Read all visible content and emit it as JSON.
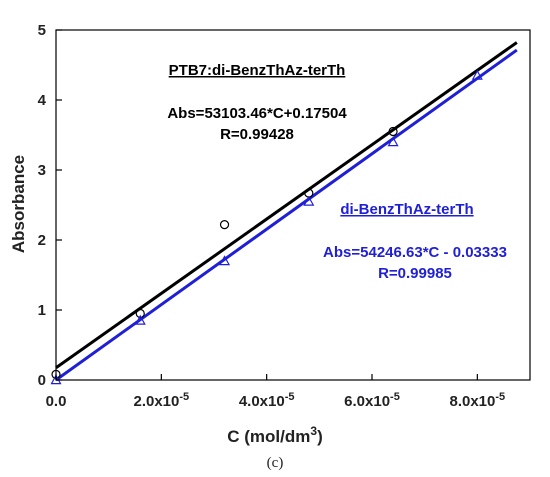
{
  "chart_data": {
    "type": "scatter",
    "xlabel_main": "C (mol/dm",
    "xlabel_sup": "3",
    "xlabel_tail": ")",
    "ylabel": "Absorbance",
    "xlim": [
      0,
      9e-05
    ],
    "ylim": [
      0,
      5
    ],
    "x_ticks": [
      {
        "value": 0,
        "base": "0.0",
        "exp": ""
      },
      {
        "value": 2e-05,
        "base": "2.0x10",
        "exp": "-5"
      },
      {
        "value": 4e-05,
        "base": "4.0x10",
        "exp": "-5"
      },
      {
        "value": 6e-05,
        "base": "6.0x10",
        "exp": "-5"
      },
      {
        "value": 8e-05,
        "base": "8.0x10",
        "exp": "-5"
      }
    ],
    "y_ticks": [
      0,
      1,
      2,
      3,
      4,
      5
    ],
    "grid": false,
    "series": [
      {
        "name": "PTB7:di-BenzThAz-terTh",
        "marker": "circle",
        "color": "#000000",
        "x": [
          0,
          1.6e-05,
          3.2e-05,
          4.8e-05,
          6.4e-05
        ],
        "y": [
          0.08,
          0.95,
          2.22,
          2.67,
          3.55
        ],
        "fit": {
          "slope": 53103.46,
          "intercept": 0.17504,
          "x_range": [
            0,
            8.75e-05
          ]
        },
        "equation": "Abs=53103.46*C+0.17504",
        "r": "R=0.99428"
      },
      {
        "name": "di-BenzThAz-terTh",
        "marker": "triangle",
        "color": "#1f1fd6",
        "x": [
          0,
          1.6e-05,
          3.2e-05,
          4.8e-05,
          6.4e-05,
          8e-05
        ],
        "y": [
          0.0,
          0.85,
          1.7,
          2.55,
          3.4,
          4.35
        ],
        "fit": {
          "slope": 54246.63,
          "intercept": -0.03333,
          "x_range": [
            0,
            8.75e-05
          ]
        },
        "equation": "Abs=54246.63*C - 0.03333",
        "r": "R=0.99985"
      }
    ]
  },
  "panel_label": "(c)"
}
